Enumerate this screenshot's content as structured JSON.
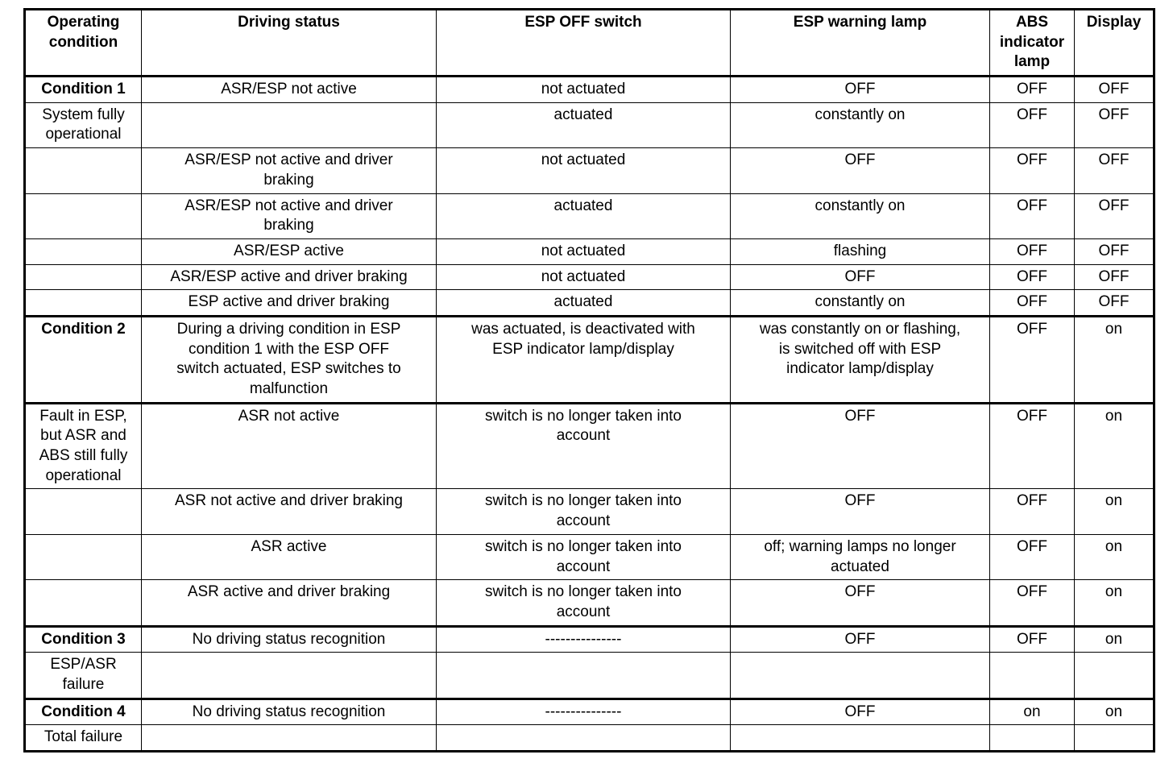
{
  "table": {
    "columns": [
      {
        "key": "operating-condition",
        "label": "Operating\ncondition"
      },
      {
        "key": "driving-status",
        "label": "Driving status"
      },
      {
        "key": "esp-off-switch",
        "label": "ESP OFF switch"
      },
      {
        "key": "esp-warning-lamp",
        "label": "ESP warning lamp"
      },
      {
        "key": "abs-indicator-lamp",
        "label": "ABS\nindicator\nlamp"
      },
      {
        "key": "display",
        "label": "Display"
      }
    ],
    "rows": [
      {
        "bold_first": true,
        "thick_top": false,
        "cells": [
          "Condition 1",
          "ASR/ESP not active",
          "not actuated",
          "OFF",
          "OFF",
          "OFF"
        ]
      },
      {
        "bold_first": false,
        "thick_top": false,
        "cells": [
          "System fully\noperational",
          "",
          "actuated",
          "constantly on",
          "OFF",
          "OFF"
        ]
      },
      {
        "bold_first": false,
        "thick_top": false,
        "cells": [
          "",
          "ASR/ESP not active and driver\nbraking",
          "not actuated",
          "OFF",
          "OFF",
          "OFF"
        ]
      },
      {
        "bold_first": false,
        "thick_top": false,
        "cells": [
          "",
          "ASR/ESP not active and driver\nbraking",
          "actuated",
          "constantly on",
          "OFF",
          "OFF"
        ]
      },
      {
        "bold_first": false,
        "thick_top": false,
        "cells": [
          "",
          "ASR/ESP active",
          "not actuated",
          "flashing",
          "OFF",
          "OFF"
        ]
      },
      {
        "bold_first": false,
        "thick_top": false,
        "cells": [
          "",
          "ASR/ESP active and driver braking",
          "not actuated",
          "OFF",
          "OFF",
          "OFF"
        ]
      },
      {
        "bold_first": false,
        "thick_top": false,
        "cells": [
          "",
          "ESP active and driver braking",
          "actuated",
          "constantly on",
          "OFF",
          "OFF"
        ]
      },
      {
        "bold_first": true,
        "thick_top": true,
        "cells": [
          "Condition 2",
          "During a driving condition in ESP\ncondition 1 with the ESP OFF\nswitch actuated, ESP switches to\nmalfunction",
          "was actuated, is deactivated with\nESP indicator lamp/display",
          "was constantly on or flashing,\nis switched off with ESP\nindicator lamp/display",
          "OFF",
          "on"
        ]
      },
      {
        "bold_first": false,
        "thick_top": true,
        "cells": [
          "Fault in ESP,\nbut ASR and\nABS still fully\noperational",
          "ASR not active",
          "switch is no longer taken into\naccount",
          "OFF",
          "OFF",
          "on"
        ]
      },
      {
        "bold_first": false,
        "thick_top": false,
        "cells": [
          "",
          "ASR not active and driver braking",
          "switch is no longer taken into\naccount",
          "OFF",
          "OFF",
          "on"
        ]
      },
      {
        "bold_first": false,
        "thick_top": false,
        "cells": [
          "",
          "ASR active",
          "switch is no longer taken into\naccount",
          "off; warning lamps no longer\nactuated",
          "OFF",
          "on"
        ]
      },
      {
        "bold_first": false,
        "thick_top": false,
        "cells": [
          "",
          "ASR active and driver braking",
          "switch is no longer taken into\naccount",
          "OFF",
          "OFF",
          "on"
        ]
      },
      {
        "bold_first": true,
        "thick_top": true,
        "cells": [
          "Condition 3",
          "No driving status recognition",
          "---------------",
          "OFF",
          "OFF",
          "on"
        ]
      },
      {
        "bold_first": false,
        "thick_top": false,
        "cells": [
          "ESP/ASR\nfailure",
          "",
          "",
          "",
          "",
          ""
        ]
      },
      {
        "bold_first": true,
        "thick_top": true,
        "cells": [
          "Condition 4",
          "No driving status recognition",
          "---------------",
          "OFF",
          "on",
          "on"
        ]
      },
      {
        "bold_first": false,
        "thick_top": false,
        "cells": [
          "Total failure",
          "",
          "",
          "",
          "",
          ""
        ]
      }
    ]
  },
  "colors": {
    "border": "#000000",
    "text": "#000000",
    "background": "#ffffff"
  }
}
